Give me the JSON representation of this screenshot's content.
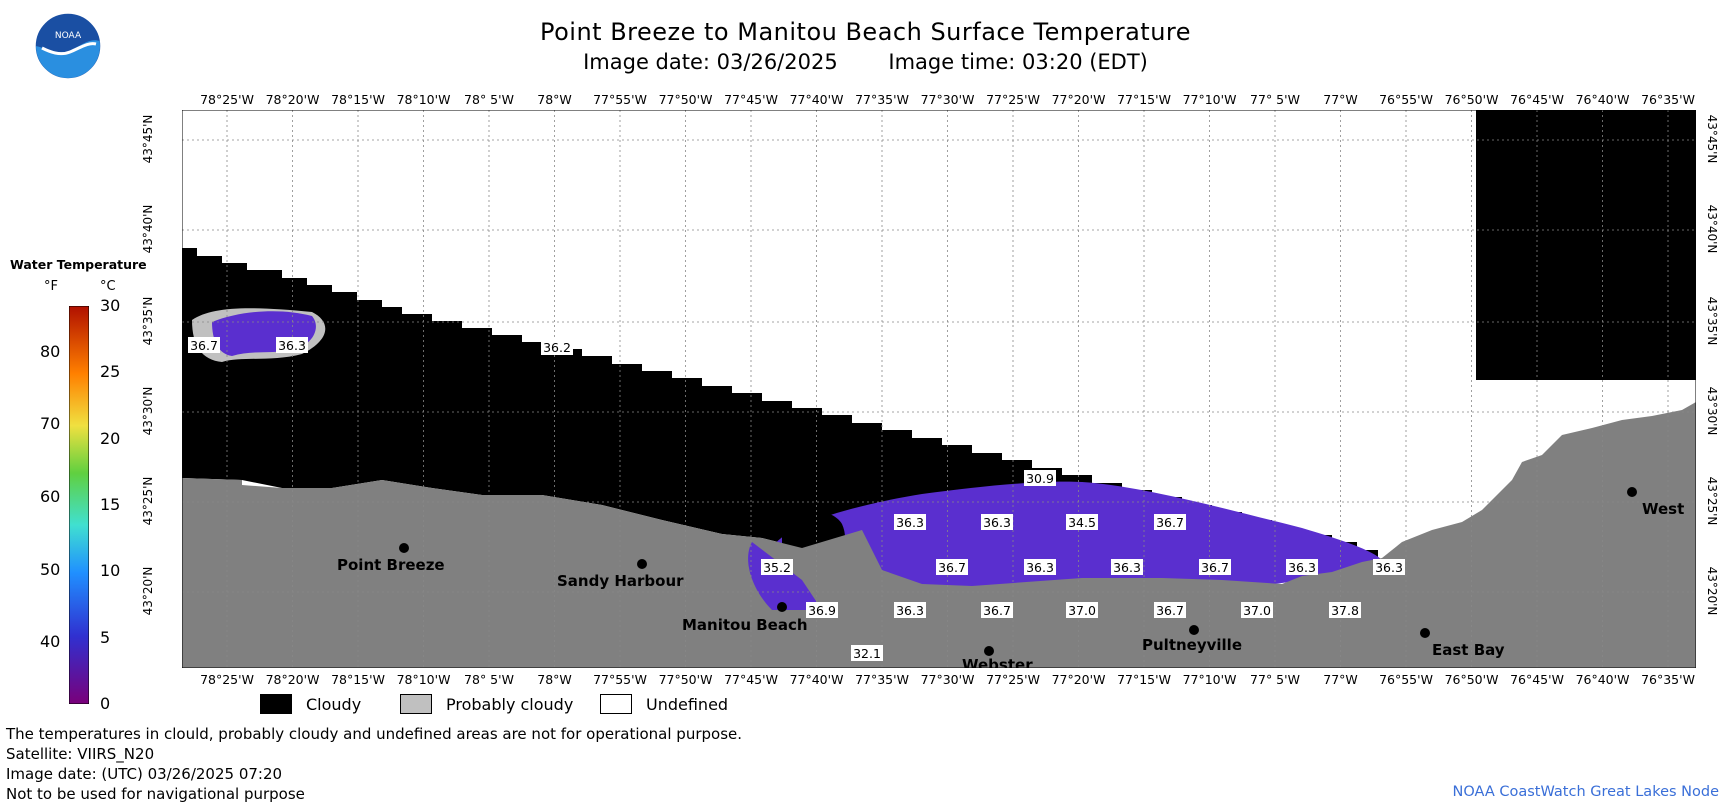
{
  "header": {
    "title": "Point Breeze to Manitou Beach Surface Temperature",
    "image_date": "Image date: 03/26/2025",
    "image_time": "Image time: 03:20 (EDT)"
  },
  "logo_text": "NOAA",
  "map": {
    "lon_labels": [
      "78°25'W",
      "78°20'W",
      "78°15'W",
      "78°10'W",
      "78° 5'W",
      "78°W",
      "77°55'W",
      "77°50'W",
      "77°45'W",
      "77°40'W",
      "77°35'W",
      "77°30'W",
      "77°25'W",
      "77°20'W",
      "77°15'W",
      "77°10'W",
      "77° 5'W",
      "77°W",
      "76°55'W",
      "76°50'W",
      "76°45'W",
      "76°40'W",
      "76°35'W"
    ],
    "lat_labels": [
      "43°45'N",
      "43°40'N",
      "43°35'N",
      "43°30'N",
      "43°25'N",
      "43°20'N"
    ],
    "places": [
      {
        "name": "Point Breeze"
      },
      {
        "name": "Sandy Harbour"
      },
      {
        "name": "Manitou Beach"
      },
      {
        "name": "Webster"
      },
      {
        "name": "Pultneyville"
      },
      {
        "name": "East Bay"
      },
      {
        "name": "West"
      }
    ],
    "temperature_labels": [
      "36.7",
      "36.3",
      "36.2",
      "30.9",
      "36.3",
      "36.3",
      "34.5",
      "36.7",
      "35.2",
      "36.7",
      "36.3",
      "36.3",
      "36.7",
      "36.3",
      "36.3",
      "36.9",
      "36.3",
      "36.7",
      "37.0",
      "36.7",
      "37.0",
      "37.8",
      "32.1"
    ]
  },
  "colorbar": {
    "title": "Water Temperature",
    "unit_f": "°F",
    "unit_c": "°C",
    "ticks_f": [
      "80",
      "70",
      "60",
      "50",
      "40"
    ],
    "ticks_c": [
      "30",
      "25",
      "20",
      "15",
      "10",
      "5",
      "0"
    ]
  },
  "legend": {
    "cloudy": "Cloudy",
    "probably_cloudy": "Probably cloudy",
    "undefined": "Undefined"
  },
  "notes": {
    "disclaimer": "The temperatures in clould, probably cloudy and undefined areas are not for operational purpose.",
    "satellite": "Satellite: VIIRS_N20",
    "utc_date": "Image date: (UTC) 03/26/2025  07:20",
    "navigation": "Not to be used for navigational purpose"
  },
  "credit": "NOAA CoastWatch Great Lakes Node",
  "colors": {
    "cloud": "#000000",
    "probably_cloudy": "#c0c0c0",
    "land": "#808080",
    "water": "#5a2fcf",
    "credit": "#3a6fd8"
  }
}
